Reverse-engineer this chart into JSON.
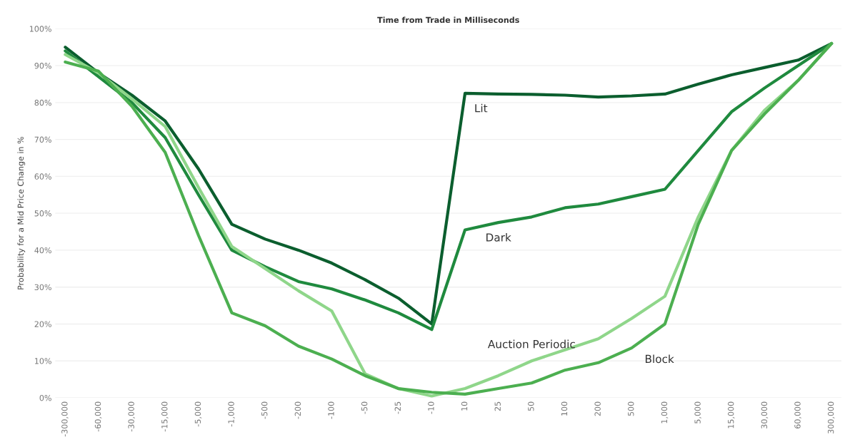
{
  "chart_data": {
    "type": "line",
    "title": "Time from Trade in Milliseconds",
    "ylabel": "Probability for a Mid Price Change in %",
    "categories": [
      "-300,000",
      "-60,000",
      "-30,000",
      "-15,000",
      "-5,000",
      "-1,000",
      "-500",
      "-200",
      "-100",
      "-50",
      "-25",
      "-10",
      "10",
      "25",
      "50",
      "100",
      "200",
      "500",
      "1,000",
      "5,000",
      "15,000",
      "30,000",
      "60,000",
      "300,000"
    ],
    "series": [
      {
        "name": "Lit",
        "color": "#0b5e2e",
        "values": [
          95,
          88,
          82,
          75,
          62,
          47,
          43,
          40,
          36.5,
          32,
          27,
          20,
          82.5,
          82.3,
          82.2,
          82,
          81.5,
          81.8,
          82.3,
          85,
          87.5,
          89.5,
          91.5,
          96
        ]
      },
      {
        "name": "Dark",
        "color": "#1f8a3e",
        "values": [
          94,
          87,
          80,
          70.5,
          55,
          40,
          35.5,
          31.5,
          29.5,
          26.5,
          23,
          18.5,
          45.5,
          47.5,
          49,
          51.5,
          52.5,
          54.5,
          56.5,
          67,
          77.5,
          84,
          90,
          96
        ]
      },
      {
        "name": "Auction Periodic",
        "color": "#8fd68a",
        "values": [
          93,
          88,
          81,
          73.5,
          57,
          41,
          35,
          29,
          23.5,
          6.5,
          2.5,
          0.5,
          2.5,
          6,
          10,
          13,
          16,
          21.5,
          27.5,
          49,
          67,
          78,
          86,
          96
        ]
      },
      {
        "name": "Block",
        "color": "#4caf50",
        "values": [
          91,
          88.5,
          79,
          66.5,
          44,
          23,
          19.5,
          14,
          10.5,
          6,
          2.5,
          1.5,
          1,
          2.5,
          4,
          7.5,
          9.5,
          13.5,
          20,
          47,
          67,
          77,
          86,
          96
        ]
      }
    ],
    "ylim": [
      0,
      100
    ],
    "yticks": [
      {
        "value": 0,
        "label": "0%"
      },
      {
        "value": 10,
        "label": "10%"
      },
      {
        "value": 20,
        "label": "20%"
      },
      {
        "value": 30,
        "label": "30%"
      },
      {
        "value": 40,
        "label": "40%"
      },
      {
        "value": 50,
        "label": "50%"
      },
      {
        "value": 60,
        "label": "60%"
      },
      {
        "value": 70,
        "label": "70%"
      },
      {
        "value": 80,
        "label": "80%"
      },
      {
        "value": 90,
        "label": "90%"
      },
      {
        "value": 100,
        "label": "100%"
      }
    ],
    "grid": "y",
    "legend": false,
    "marker": "none",
    "line_style": "solid"
  }
}
